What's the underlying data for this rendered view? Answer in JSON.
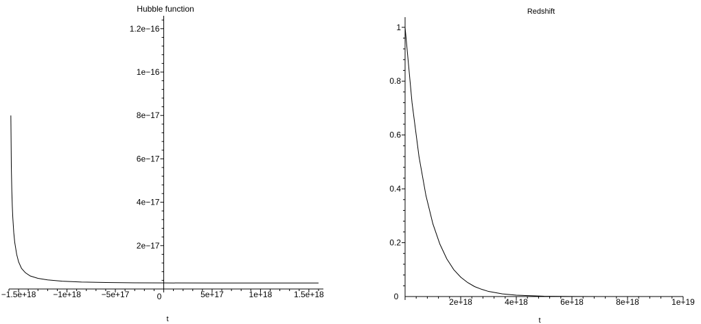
{
  "chart_data": [
    {
      "type": "line",
      "title": "Hubble function",
      "xlabel": "t",
      "ylabel": "",
      "xlim": [
        -1.6e+18,
        1.65e+18
      ],
      "ylim": [
        0,
        1.25e-16
      ],
      "grid": false,
      "x_ticks": [
        {
          "value": -1.5e+18,
          "label": "−1.5e+18"
        },
        {
          "value": -1e+18,
          "label": "−1e+18"
        },
        {
          "value": -5e+17,
          "label": "−5e+17"
        },
        {
          "value": 5e+17,
          "label": "5e+17"
        },
        {
          "value": 1e+18,
          "label": "1e+18"
        },
        {
          "value": 1.5e+18,
          "label": "1.5e+18"
        }
      ],
      "y_ticks": [
        {
          "value": 2e-17,
          "label": "2e−17"
        },
        {
          "value": 4e-17,
          "label": "4e−17"
        },
        {
          "value": 6e-17,
          "label": "6e−17"
        },
        {
          "value": 8e-17,
          "label": "8e−17"
        },
        {
          "value": 1e-16,
          "label": "1e−16"
        },
        {
          "value": 1.2e-16,
          "label": "1.2e−16"
        }
      ],
      "origin_label": "0",
      "series": [
        {
          "x": [
            -1.58e+18,
            -1.575e+18,
            -1.57e+18,
            -1.565e+18,
            -1.56e+18,
            -1.55e+18,
            -1.54e+18,
            -1.52e+18,
            -1.5e+18,
            -1.47e+18,
            -1.43e+18,
            -1.38e+18,
            -1.3e+18,
            -1.2e+18,
            -1.05e+18,
            -8.5e+17,
            -6e+17,
            -3e+17,
            0,
            5e+17,
            1e+18,
            1.6e+18
          ],
          "y": [
            8e-17,
            5.6e-17,
            4.5e-17,
            3.8e-17,
            3.3e-17,
            2.6e-17,
            2.15e-17,
            1.6e-17,
            1.25e-17,
            9.5e-18,
            7.5e-18,
            6e-18,
            4.9e-18,
            4.2e-18,
            3.6e-18,
            3.2e-18,
            3e-18,
            2.85e-18,
            2.8e-18,
            2.75e-18,
            2.75e-18,
            2.75e-18
          ]
        }
      ]
    },
    {
      "type": "line",
      "title": "Redshift",
      "xlabel": "t",
      "ylabel": "",
      "xlim": [
        0,
        1e+19
      ],
      "ylim": [
        0,
        1.03
      ],
      "grid": false,
      "x_ticks": [
        {
          "value": 2e+18,
          "label": "2e+18"
        },
        {
          "value": 4e+18,
          "label": "4e+18"
        },
        {
          "value": 6e+18,
          "label": "6e+18"
        },
        {
          "value": 8e+18,
          "label": "8e+18"
        },
        {
          "value": 1e+19,
          "label": "1e+19"
        }
      ],
      "y_ticks": [
        {
          "value": 0.2,
          "label": "0.2"
        },
        {
          "value": 0.4,
          "label": "0.4"
        },
        {
          "value": 0.6,
          "label": "0.6"
        },
        {
          "value": 0.8,
          "label": "0.8"
        },
        {
          "value": 1,
          "label": "1"
        }
      ],
      "origin_label": "0",
      "series": [
        {
          "x": [
            0,
            2.5e+17,
            5e+17,
            7.5e+17,
            1e+18,
            1.25e+18,
            1.5e+18,
            1.75e+18,
            2e+18,
            2.25e+18,
            2.5e+18,
            2.75e+18,
            3e+18,
            3.5e+18,
            4e+18,
            5e+18,
            6e+18,
            7e+18,
            8e+18,
            9e+18,
            1e+19
          ],
          "y": [
            1.0,
            0.72,
            0.52,
            0.375,
            0.27,
            0.195,
            0.14,
            0.1,
            0.072,
            0.052,
            0.037,
            0.027,
            0.019,
            0.01,
            0.005,
            0.0013,
            0.0003,
            0.0001,
            0,
            0,
            0
          ]
        }
      ]
    }
  ]
}
